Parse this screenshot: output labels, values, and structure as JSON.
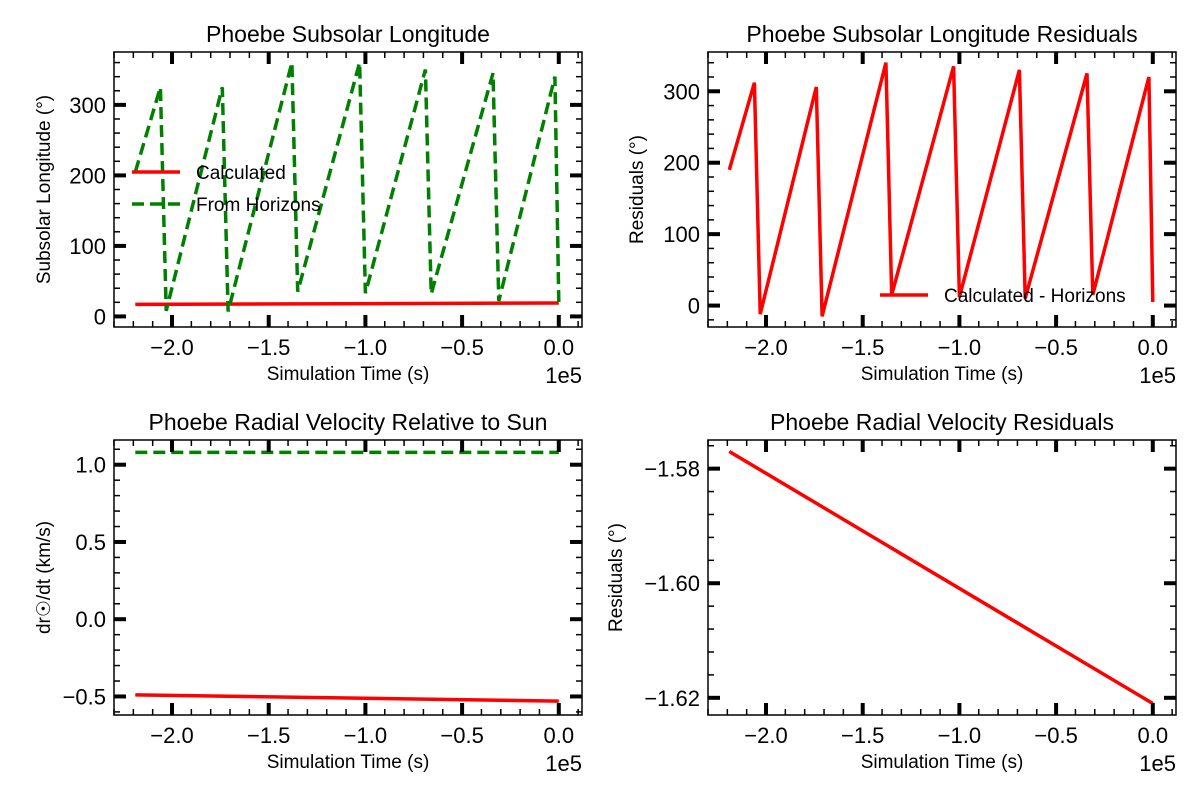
{
  "colors": {
    "calculated": "#ff0000",
    "horizons": "#008000",
    "residual": "#ff0000"
  },
  "chart_data": [
    {
      "type": "line",
      "title": "Phoebe Subsolar Longitude",
      "xlabel": "Simulation Time (s)",
      "ylabel": "Subsolar Longitude (°)",
      "x_offset_label": "1e5",
      "xlim": [
        -2.3,
        0.12
      ],
      "ylim": [
        -15,
        375
      ],
      "x_ticks": [
        -2.0,
        -1.5,
        -1.0,
        -0.5,
        0.0
      ],
      "x_tick_labels": [
        "−2.0",
        "−1.5",
        "−1.0",
        "−0.5",
        "0.0"
      ],
      "y_ticks": [
        0,
        100,
        200,
        300
      ],
      "y_tick_labels": [
        "0",
        "100",
        "200",
        "300"
      ],
      "legend": {
        "location": "center-left"
      },
      "series": [
        {
          "name": "Calculated",
          "style": "solid",
          "color": "#ff0000",
          "x": [
            -2.19,
            0.0
          ],
          "y": [
            17,
            19
          ]
        },
        {
          "name": "From Horizons",
          "style": "dashed",
          "color": "#008000",
          "x": [
            -2.19,
            -2.06,
            -2.03,
            -1.74,
            -1.71,
            -1.38,
            -1.35,
            -1.03,
            -1.0,
            -0.69,
            -0.66,
            -0.34,
            -0.31,
            -0.02,
            0.0
          ],
          "y": [
            205,
            325,
            8,
            325,
            7,
            360,
            35,
            360,
            33,
            350,
            32,
            345,
            22,
            340,
            20
          ]
        }
      ]
    },
    {
      "type": "line",
      "title": "Phoebe Subsolar Longitude Residuals",
      "xlabel": "Simulation Time (s)",
      "ylabel": "Residuals (°)",
      "x_offset_label": "1e5",
      "xlim": [
        -2.3,
        0.12
      ],
      "ylim": [
        -30,
        355
      ],
      "x_ticks": [
        -2.0,
        -1.5,
        -1.0,
        -0.5,
        0.0
      ],
      "x_tick_labels": [
        "−2.0",
        "−1.5",
        "−1.0",
        "−0.5",
        "0.0"
      ],
      "y_ticks": [
        0,
        100,
        200,
        300
      ],
      "y_tick_labels": [
        "0",
        "100",
        "200",
        "300"
      ],
      "legend": {
        "location": "lower-right"
      },
      "series": [
        {
          "name": "Calculated - Horizons",
          "style": "solid",
          "color": "#ff0000",
          "x": [
            -2.19,
            -2.06,
            -2.03,
            -1.74,
            -1.71,
            -1.38,
            -1.35,
            -1.03,
            -1.0,
            -0.69,
            -0.66,
            -0.34,
            -0.31,
            -0.02,
            0.0
          ],
          "y": [
            190,
            312,
            -12,
            306,
            -15,
            340,
            15,
            335,
            12,
            330,
            10,
            325,
            15,
            320,
            5
          ]
        }
      ]
    },
    {
      "type": "line",
      "title": "Phoebe Radial Velocity Relative to Sun",
      "xlabel": "Simulation Time (s)",
      "ylabel": "dr☉/dt (km/s)",
      "x_offset_label": "1e5",
      "xlim": [
        -2.3,
        0.12
      ],
      "ylim": [
        -0.62,
        1.16
      ],
      "x_ticks": [
        -2.0,
        -1.5,
        -1.0,
        -0.5,
        0.0
      ],
      "x_tick_labels": [
        "−2.0",
        "−1.5",
        "−1.0",
        "−0.5",
        "0.0"
      ],
      "y_ticks": [
        -0.5,
        0.0,
        0.5,
        1.0
      ],
      "y_tick_labels": [
        "−0.5",
        "0.0",
        "0.5",
        "1.0"
      ],
      "series": [
        {
          "style": "solid",
          "color": "#ff0000",
          "x": [
            -2.19,
            0.0
          ],
          "y": [
            -0.49,
            -0.53
          ]
        },
        {
          "style": "dashed",
          "color": "#008000",
          "x": [
            -2.19,
            0.0
          ],
          "y": [
            1.08,
            1.08
          ]
        }
      ]
    },
    {
      "type": "line",
      "title": "Phoebe Radial Velocity Residuals",
      "xlabel": "Simulation Time (s)",
      "ylabel": "Residuals (°)",
      "x_offset_label": "1e5",
      "xlim": [
        -2.3,
        0.12
      ],
      "ylim": [
        -1.623,
        -1.575
      ],
      "x_ticks": [
        -2.0,
        -1.5,
        -1.0,
        -0.5,
        0.0
      ],
      "x_tick_labels": [
        "−2.0",
        "−1.5",
        "−1.0",
        "−0.5",
        "0.0"
      ],
      "y_ticks": [
        -1.62,
        -1.6,
        -1.58
      ],
      "y_tick_labels": [
        "−1.62",
        "−1.60",
        "−1.58"
      ],
      "series": [
        {
          "style": "solid",
          "color": "#ff0000",
          "x": [
            -2.19,
            0.0
          ],
          "y": [
            -1.577,
            -1.621
          ]
        }
      ]
    }
  ]
}
